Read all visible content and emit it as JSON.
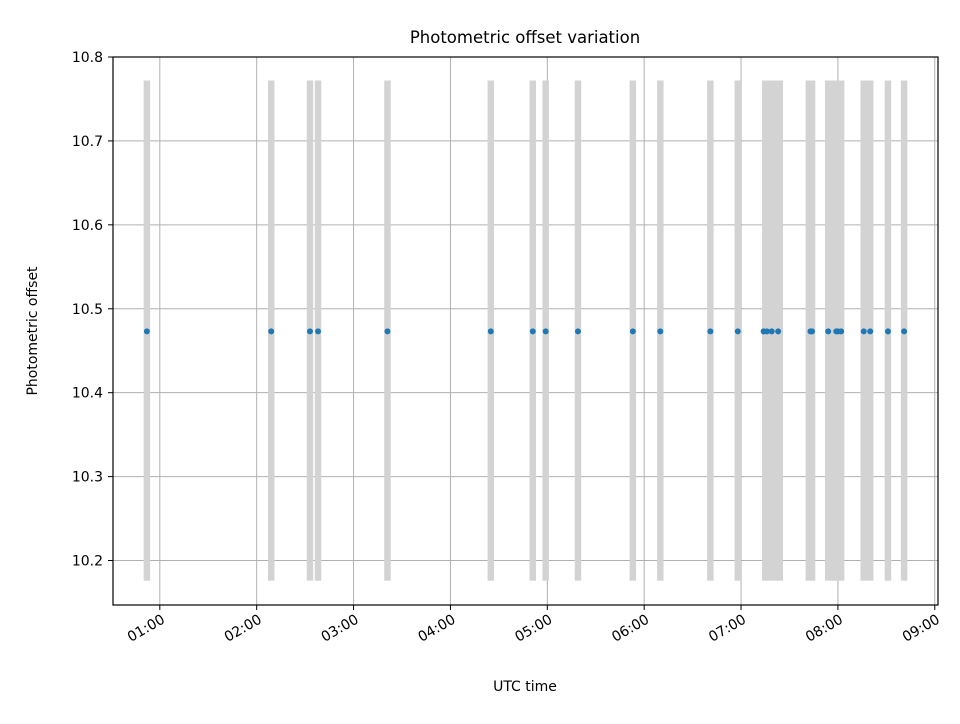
{
  "chart_data": {
    "type": "scatter",
    "title": "Photometric offset variation",
    "xlabel": "UTC time",
    "ylabel": "Photometric offset",
    "xlim": [
      "00:31",
      "09:02"
    ],
    "ylim": [
      10.147,
      10.8
    ],
    "x_ticks": [
      "01:00",
      "02:00",
      "03:00",
      "04:00",
      "05:00",
      "06:00",
      "07:00",
      "08:00",
      "09:00"
    ],
    "y_ticks": [
      10.2,
      10.3,
      10.4,
      10.5,
      10.6,
      10.7,
      10.8
    ],
    "grid": true,
    "band_range": [
      10.176,
      10.772
    ],
    "bands": [
      [
        "00:50",
        "00:54"
      ],
      [
        "02:07",
        "02:11"
      ],
      [
        "02:31",
        "02:35"
      ],
      [
        "02:36",
        "02:40"
      ],
      [
        "03:19",
        "03:23"
      ],
      [
        "04:23",
        "04:27"
      ],
      [
        "04:49",
        "04:53"
      ],
      [
        "04:57",
        "05:01"
      ],
      [
        "05:17",
        "05:21"
      ],
      [
        "05:51",
        "05:55"
      ],
      [
        "06:08",
        "06:12"
      ],
      [
        "06:39",
        "06:43"
      ],
      [
        "06:56",
        "07:00"
      ],
      [
        "07:13",
        "07:26"
      ],
      [
        "07:40",
        "07:46"
      ],
      [
        "07:52",
        "07:56"
      ],
      [
        "07:56",
        "08:04"
      ],
      [
        "08:14",
        "08:22"
      ],
      [
        "08:29",
        "08:33"
      ],
      [
        "08:39",
        "08:43"
      ]
    ],
    "series": [
      {
        "color": "#1f77b4",
        "x": [
          "00:52",
          "02:09",
          "02:33",
          "02:38",
          "03:21",
          "04:25",
          "04:51",
          "04:59",
          "05:19",
          "05:53",
          "06:10",
          "06:41",
          "06:58",
          "07:14",
          "07:16",
          "07:19",
          "07:23",
          "07:43",
          "07:44",
          "07:54",
          "07:59",
          "08:00",
          "08:02",
          "08:16",
          "08:20",
          "08:31",
          "08:41"
        ],
        "y": [
          10.473,
          10.473,
          10.473,
          10.473,
          10.473,
          10.473,
          10.473,
          10.473,
          10.473,
          10.473,
          10.473,
          10.473,
          10.473,
          10.473,
          10.473,
          10.473,
          10.473,
          10.473,
          10.473,
          10.473,
          10.473,
          10.473,
          10.473,
          10.473,
          10.473,
          10.473,
          10.473
        ]
      }
    ],
    "colors": {
      "band": "#d3d3d3",
      "grid": "#b0b0b0",
      "axes": "#000000"
    }
  }
}
